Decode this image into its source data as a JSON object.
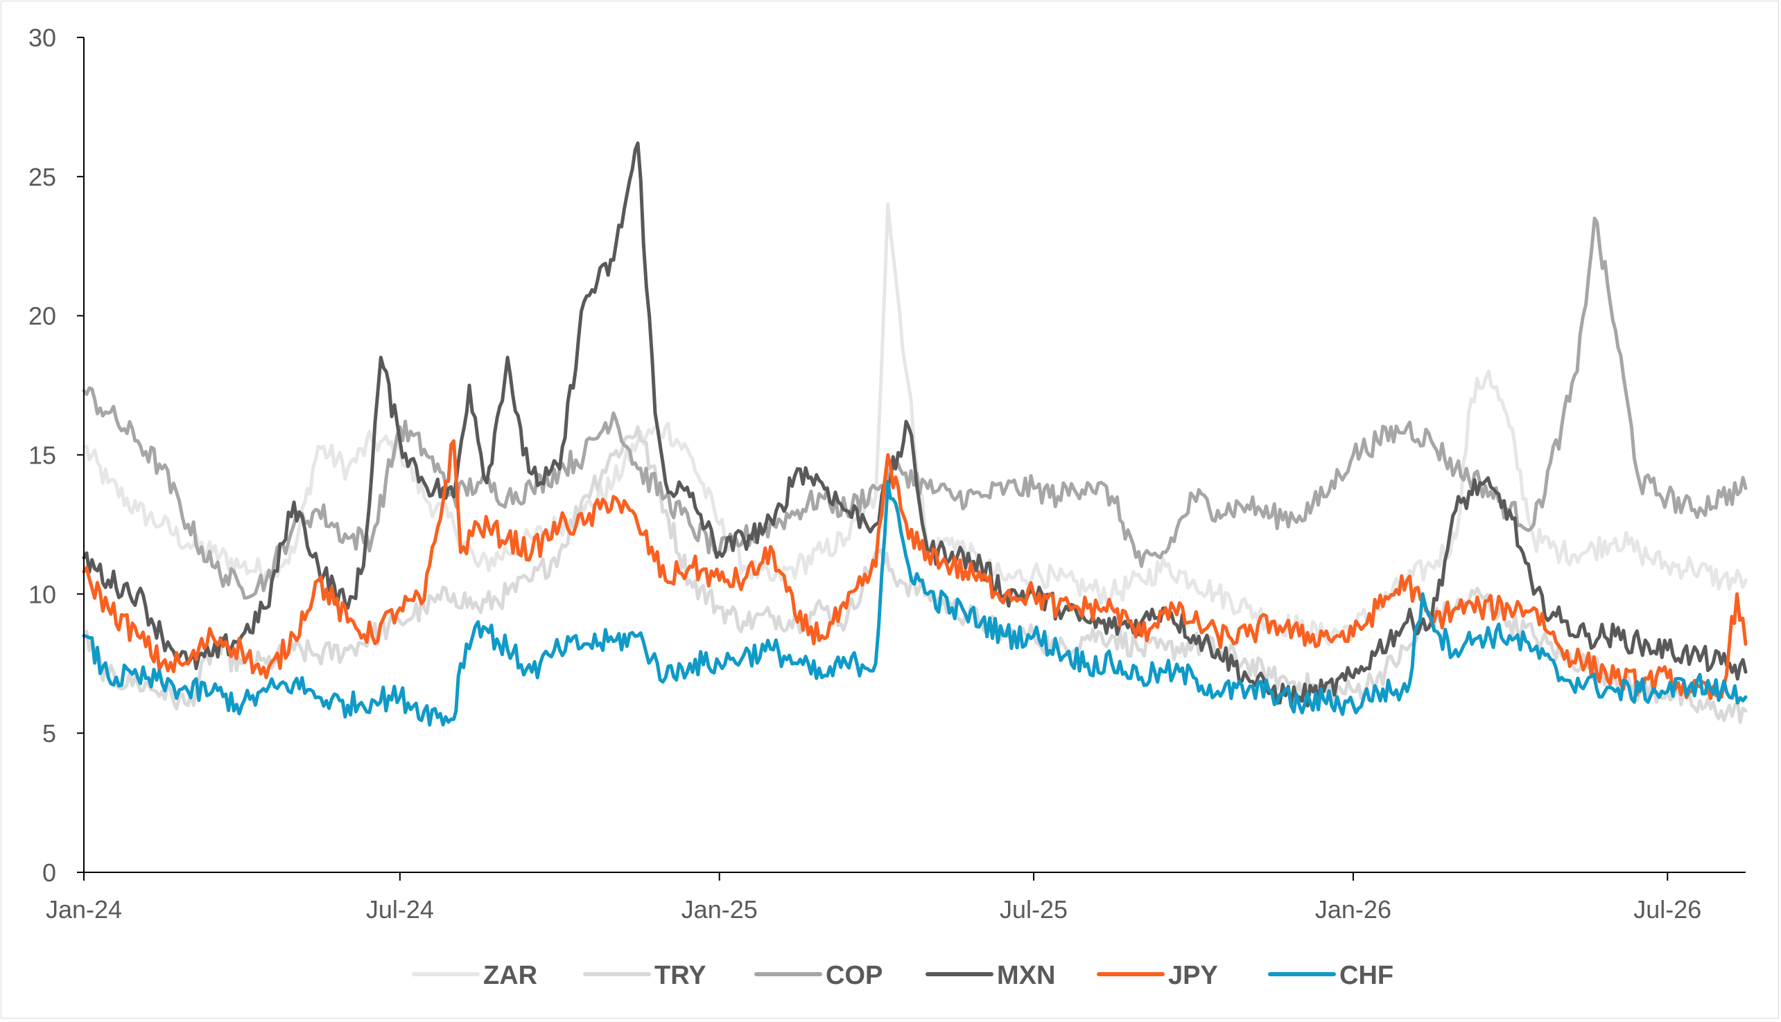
{
  "chart_data": {
    "type": "line",
    "title": "",
    "xlabel": "",
    "ylabel": "",
    "ylim": [
      0,
      30
    ],
    "yticks": [
      0,
      5,
      10,
      15,
      20,
      25,
      30
    ],
    "xlim": [
      "2024-01-01",
      "2026-08-15"
    ],
    "xticks": [
      {
        "date": "2024-01-01",
        "label": "Jan-24"
      },
      {
        "date": "2024-07-01",
        "label": "Jul-24"
      },
      {
        "date": "2025-01-01",
        "label": "Jan-25"
      },
      {
        "date": "2025-07-01",
        "label": "Jul-25"
      },
      {
        "date": "2026-01-01",
        "label": "Jan-26"
      },
      {
        "date": "2026-07-01",
        "label": "Jul-26"
      }
    ],
    "grid": false,
    "legend_position": "bottom",
    "series": [
      {
        "name": "ZAR",
        "color": "#e6e6e6",
        "x": [
          "2024-01-01",
          "2024-01-15",
          "2024-02-01",
          "2024-02-15",
          "2024-03-01",
          "2024-03-15",
          "2024-04-01",
          "2024-04-15",
          "2024-05-01",
          "2024-05-15",
          "2024-06-01",
          "2024-06-15",
          "2024-07-01",
          "2024-07-15",
          "2024-08-01",
          "2024-08-15",
          "2024-09-01",
          "2024-09-15",
          "2024-10-01",
          "2024-10-15",
          "2024-11-01",
          "2024-11-15",
          "2024-12-01",
          "2024-12-15",
          "2025-01-01",
          "2025-01-15",
          "2025-02-01",
          "2025-02-15",
          "2025-03-01",
          "2025-03-15",
          "2025-04-01",
          "2025-04-08",
          "2025-04-15",
          "2025-05-01",
          "2025-05-15",
          "2025-06-01",
          "2025-06-15",
          "2025-07-01",
          "2025-07-15",
          "2025-08-01",
          "2025-08-15",
          "2025-09-01",
          "2025-09-15",
          "2025-10-01",
          "2025-10-15",
          "2025-11-01",
          "2025-11-15",
          "2025-12-01",
          "2025-12-15",
          "2026-01-01",
          "2026-01-15",
          "2026-02-01",
          "2026-02-15",
          "2026-03-01",
          "2026-03-10",
          "2026-03-20",
          "2026-04-01",
          "2026-04-15",
          "2026-05-01",
          "2026-05-15",
          "2026-06-01",
          "2026-06-15",
          "2026-07-01",
          "2026-07-15",
          "2026-08-01",
          "2026-08-15"
        ],
        "values": [
          15.3,
          14.0,
          13.0,
          12.5,
          11.8,
          11.5,
          11.0,
          10.8,
          11.5,
          15.3,
          14.5,
          15.5,
          15.2,
          13.5,
          12.5,
          11.0,
          11.5,
          12.0,
          12.5,
          13.0,
          14.0,
          15.5,
          16.0,
          15.0,
          12.5,
          11.0,
          10.5,
          11.0,
          11.5,
          12.0,
          13.5,
          24.0,
          20.0,
          11.5,
          12.0,
          11.0,
          10.5,
          10.8,
          10.5,
          10.2,
          10.0,
          10.5,
          11.0,
          10.5,
          10.0,
          9.5,
          9.0,
          8.8,
          8.5,
          8.8,
          9.5,
          10.5,
          11.0,
          12.0,
          17.0,
          18.0,
          16.0,
          12.0,
          11.5,
          11.5,
          12.0,
          11.5,
          11.0,
          11.0,
          10.5,
          10.5
        ]
      },
      {
        "name": "TRY",
        "color": "#d9d9d9",
        "x": [
          "2024-01-01",
          "2024-01-15",
          "2024-02-01",
          "2024-02-15",
          "2024-03-01",
          "2024-03-15",
          "2024-04-01",
          "2024-04-15",
          "2024-05-01",
          "2024-05-15",
          "2024-06-01",
          "2024-06-15",
          "2024-07-01",
          "2024-07-15",
          "2024-08-01",
          "2024-08-15",
          "2024-09-01",
          "2024-09-15",
          "2024-10-01",
          "2024-10-15",
          "2024-11-01",
          "2024-11-15",
          "2024-12-01",
          "2024-12-15",
          "2025-01-01",
          "2025-01-15",
          "2025-02-01",
          "2025-02-15",
          "2025-03-01",
          "2025-03-15",
          "2025-04-01",
          "2025-04-15",
          "2025-05-01",
          "2025-05-15",
          "2025-06-01",
          "2025-06-15",
          "2025-07-01",
          "2025-07-15",
          "2025-08-01",
          "2025-08-15",
          "2025-09-01",
          "2025-09-15",
          "2025-10-01",
          "2025-10-15",
          "2025-11-01",
          "2025-11-15",
          "2025-12-01",
          "2025-12-15",
          "2026-01-01",
          "2026-01-15",
          "2026-02-01",
          "2026-02-15",
          "2026-03-01",
          "2026-03-15",
          "2026-04-01",
          "2026-04-15",
          "2026-05-01",
          "2026-05-15",
          "2026-06-01",
          "2026-06-15",
          "2026-07-01",
          "2026-07-15",
          "2026-08-01",
          "2026-08-15"
        ],
        "values": [
          8.5,
          7.0,
          6.8,
          6.5,
          6.0,
          8.0,
          7.5,
          7.5,
          8.0,
          7.8,
          8.0,
          8.5,
          9.0,
          9.5,
          10.0,
          9.5,
          10.0,
          10.5,
          11.5,
          13.5,
          15.0,
          16.0,
          13.0,
          10.5,
          9.5,
          9.0,
          9.2,
          9.0,
          9.5,
          9.0,
          11.5,
          10.5,
          10.0,
          9.5,
          9.0,
          8.5,
          8.5,
          8.0,
          8.5,
          8.5,
          8.0,
          8.0,
          8.2,
          8.0,
          7.5,
          7.0,
          6.8,
          6.5,
          6.5,
          7.0,
          8.0,
          9.0,
          9.5,
          10.0,
          9.0,
          8.5,
          7.8,
          7.5,
          7.0,
          6.5,
          6.5,
          6.0,
          5.8,
          5.8
        ]
      },
      {
        "name": "COP",
        "color": "#a6a6a6",
        "x": [
          "2024-01-01",
          "2024-01-15",
          "2024-02-01",
          "2024-02-15",
          "2024-03-01",
          "2024-03-15",
          "2024-04-01",
          "2024-04-15",
          "2024-05-01",
          "2024-05-15",
          "2024-06-01",
          "2024-06-15",
          "2024-07-01",
          "2024-07-15",
          "2024-08-01",
          "2024-08-15",
          "2024-09-01",
          "2024-09-15",
          "2024-10-01",
          "2024-10-15",
          "2024-11-01",
          "2024-11-15",
          "2024-12-01",
          "2024-12-15",
          "2025-01-01",
          "2025-01-15",
          "2025-02-01",
          "2025-02-15",
          "2025-03-01",
          "2025-03-15",
          "2025-04-01",
          "2025-04-15",
          "2025-05-01",
          "2025-05-15",
          "2025-06-01",
          "2025-06-15",
          "2025-07-01",
          "2025-07-15",
          "2025-08-01",
          "2025-08-15",
          "2025-09-01",
          "2025-09-15",
          "2025-10-01",
          "2025-10-15",
          "2025-11-01",
          "2025-11-15",
          "2025-12-01",
          "2025-12-15",
          "2026-01-01",
          "2026-01-15",
          "2026-02-01",
          "2026-02-15",
          "2026-03-01",
          "2026-03-15",
          "2026-04-01",
          "2026-04-15",
          "2026-05-01",
          "2026-05-10",
          "2026-05-20",
          "2026-06-01",
          "2026-06-15",
          "2026-07-01",
          "2026-07-15",
          "2026-08-01",
          "2026-08-15"
        ],
        "values": [
          17.3,
          16.5,
          15.5,
          14.5,
          12.5,
          11.0,
          10.2,
          10.5,
          12.5,
          13.0,
          12.0,
          12.0,
          16.0,
          15.2,
          13.5,
          14.0,
          13.5,
          13.8,
          14.5,
          15.0,
          16.5,
          14.5,
          13.5,
          12.5,
          11.5,
          12.0,
          12.5,
          13.0,
          13.5,
          13.0,
          13.8,
          14.5,
          13.8,
          13.5,
          13.5,
          13.8,
          13.8,
          13.5,
          14.0,
          13.5,
          11.0,
          11.5,
          13.5,
          13.0,
          13.2,
          12.8,
          12.8,
          13.5,
          15.0,
          15.5,
          16.0,
          15.5,
          14.5,
          14.0,
          13.0,
          12.5,
          16.0,
          18.0,
          23.5,
          19.5,
          14.0,
          13.5,
          13.0,
          13.5,
          13.8
        ]
      },
      {
        "name": "MXN",
        "color": "#595959",
        "x": [
          "2024-01-01",
          "2024-01-15",
          "2024-02-01",
          "2024-02-15",
          "2024-03-01",
          "2024-03-15",
          "2024-04-01",
          "2024-04-15",
          "2024-05-01",
          "2024-05-15",
          "2024-06-01",
          "2024-06-10",
          "2024-06-20",
          "2024-07-01",
          "2024-07-15",
          "2024-08-01",
          "2024-08-10",
          "2024-08-20",
          "2024-09-01",
          "2024-09-10",
          "2024-09-20",
          "2024-10-01",
          "2024-10-15",
          "2024-11-01",
          "2024-11-15",
          "2024-11-25",
          "2024-12-01",
          "2024-12-15",
          "2025-01-01",
          "2025-01-15",
          "2025-02-01",
          "2025-02-15",
          "2025-03-01",
          "2025-03-15",
          "2025-04-01",
          "2025-04-08",
          "2025-04-20",
          "2025-05-01",
          "2025-05-15",
          "2025-06-01",
          "2025-06-15",
          "2025-07-01",
          "2025-07-15",
          "2025-08-01",
          "2025-08-15",
          "2025-09-01",
          "2025-09-15",
          "2025-10-01",
          "2025-10-15",
          "2025-11-01",
          "2025-11-15",
          "2025-12-01",
          "2025-12-15",
          "2026-01-01",
          "2026-01-15",
          "2026-02-01",
          "2026-02-15",
          "2026-03-01",
          "2026-03-15",
          "2026-04-01",
          "2026-04-15",
          "2026-05-01",
          "2026-05-15",
          "2026-06-01",
          "2026-06-15",
          "2026-07-01",
          "2026-07-15",
          "2026-08-01",
          "2026-08-15"
        ],
        "values": [
          11.3,
          10.5,
          10.0,
          8.5,
          7.5,
          7.8,
          8.5,
          9.5,
          13.3,
          11.0,
          9.5,
          11.0,
          18.5,
          15.5,
          14.0,
          13.5,
          17.5,
          14.0,
          18.5,
          15.0,
          14.0,
          14.5,
          20.5,
          22.0,
          26.2,
          16.5,
          14.0,
          13.5,
          11.5,
          12.0,
          12.5,
          14.5,
          14.0,
          13.0,
          12.5,
          14.0,
          16.0,
          11.5,
          11.5,
          11.0,
          10.0,
          10.0,
          9.5,
          9.0,
          8.8,
          9.0,
          9.5,
          8.5,
          8.0,
          7.0,
          6.5,
          6.3,
          6.5,
          7.0,
          8.0,
          9.0,
          9.0,
          13.0,
          14.0,
          13.0,
          10.0,
          9.0,
          8.5,
          8.5,
          8.2,
          8.0,
          7.8,
          7.5,
          7.2
        ]
      },
      {
        "name": "JPY",
        "color": "#fa6020",
        "x": [
          "2024-01-01",
          "2024-01-15",
          "2024-02-01",
          "2024-02-15",
          "2024-03-01",
          "2024-03-15",
          "2024-04-01",
          "2024-04-15",
          "2024-05-01",
          "2024-05-15",
          "2024-06-01",
          "2024-06-15",
          "2024-07-01",
          "2024-07-15",
          "2024-08-01",
          "2024-08-05",
          "2024-08-15",
          "2024-09-01",
          "2024-09-15",
          "2024-10-01",
          "2024-10-15",
          "2024-11-01",
          "2024-11-15",
          "2024-12-01",
          "2024-12-15",
          "2025-01-01",
          "2025-01-15",
          "2025-02-01",
          "2025-02-15",
          "2025-03-01",
          "2025-03-15",
          "2025-04-01",
          "2025-04-08",
          "2025-04-20",
          "2025-05-01",
          "2025-05-15",
          "2025-06-01",
          "2025-06-15",
          "2025-07-01",
          "2025-07-15",
          "2025-08-01",
          "2025-08-15",
          "2025-09-01",
          "2025-09-15",
          "2025-10-01",
          "2025-10-15",
          "2025-11-01",
          "2025-11-15",
          "2025-12-01",
          "2025-12-15",
          "2026-01-01",
          "2026-01-15",
          "2026-02-01",
          "2026-02-15",
          "2026-03-01",
          "2026-03-15",
          "2026-04-01",
          "2026-04-15",
          "2026-05-01",
          "2026-05-15",
          "2026-06-01",
          "2026-06-15",
          "2026-07-01",
          "2026-07-15",
          "2026-08-01",
          "2026-08-10",
          "2026-08-15"
        ],
        "values": [
          10.8,
          9.5,
          8.5,
          7.5,
          7.5,
          8.5,
          8.0,
          7.0,
          8.5,
          10.5,
          9.0,
          8.5,
          9.5,
          9.8,
          15.5,
          11.5,
          12.5,
          12.0,
          11.5,
          12.5,
          12.5,
          13.5,
          12.5,
          10.5,
          11.0,
          10.5,
          10.5,
          11.5,
          9.0,
          8.5,
          9.5,
          11.0,
          15.0,
          12.0,
          11.5,
          11.0,
          10.5,
          10.0,
          10.0,
          9.5,
          9.5,
          9.5,
          8.5,
          9.5,
          9.0,
          8.5,
          8.5,
          9.0,
          8.5,
          8.5,
          8.5,
          9.5,
          10.5,
          9.0,
          9.5,
          9.5,
          9.5,
          9.5,
          8.0,
          7.5,
          7.0,
          6.8,
          7.0,
          6.5,
          6.3,
          10.0,
          8.2
        ]
      },
      {
        "name": "CHF",
        "color": "#0f9ac8",
        "x": [
          "2024-01-01",
          "2024-01-15",
          "2024-02-01",
          "2024-02-15",
          "2024-03-01",
          "2024-03-15",
          "2024-04-01",
          "2024-04-15",
          "2024-05-01",
          "2024-05-15",
          "2024-06-01",
          "2024-06-15",
          "2024-07-01",
          "2024-07-15",
          "2024-08-01",
          "2024-08-05",
          "2024-08-15",
          "2024-09-01",
          "2024-09-15",
          "2024-10-01",
          "2024-10-15",
          "2024-11-01",
          "2024-11-15",
          "2024-12-01",
          "2024-12-15",
          "2025-01-01",
          "2025-01-15",
          "2025-02-01",
          "2025-02-15",
          "2025-03-01",
          "2025-03-15",
          "2025-04-01",
          "2025-04-08",
          "2025-04-20",
          "2025-05-01",
          "2025-05-15",
          "2025-06-01",
          "2025-06-15",
          "2025-07-01",
          "2025-07-15",
          "2025-08-01",
          "2025-08-15",
          "2025-09-01",
          "2025-09-15",
          "2025-10-01",
          "2025-10-15",
          "2025-11-01",
          "2025-11-15",
          "2025-12-01",
          "2025-12-15",
          "2026-01-01",
          "2026-01-15",
          "2026-02-01",
          "2026-02-10",
          "2026-02-20",
          "2026-03-01",
          "2026-03-15",
          "2026-04-01",
          "2026-04-15",
          "2026-05-01",
          "2026-05-15",
          "2026-06-01",
          "2026-06-15",
          "2026-07-01",
          "2026-07-15",
          "2026-08-01",
          "2026-08-15"
        ],
        "values": [
          8.5,
          7.0,
          7.0,
          6.8,
          6.5,
          6.5,
          6.0,
          6.5,
          6.8,
          6.3,
          6.0,
          6.2,
          6.3,
          5.8,
          5.5,
          7.5,
          9.0,
          8.0,
          7.2,
          8.0,
          8.2,
          8.3,
          8.5,
          7.0,
          7.5,
          7.5,
          7.8,
          8.0,
          7.5,
          7.0,
          7.5,
          7.5,
          14.0,
          11.0,
          10.0,
          9.5,
          9.0,
          8.5,
          8.5,
          8.0,
          7.5,
          7.5,
          7.0,
          7.2,
          7.0,
          6.5,
          6.5,
          6.5,
          6.0,
          6.2,
          6.0,
          6.5,
          6.5,
          10.0,
          8.5,
          8.0,
          8.5,
          8.5,
          8.0,
          7.0,
          6.8,
          6.5,
          6.5,
          6.5,
          6.8,
          6.5,
          6.3
        ]
      }
    ]
  }
}
